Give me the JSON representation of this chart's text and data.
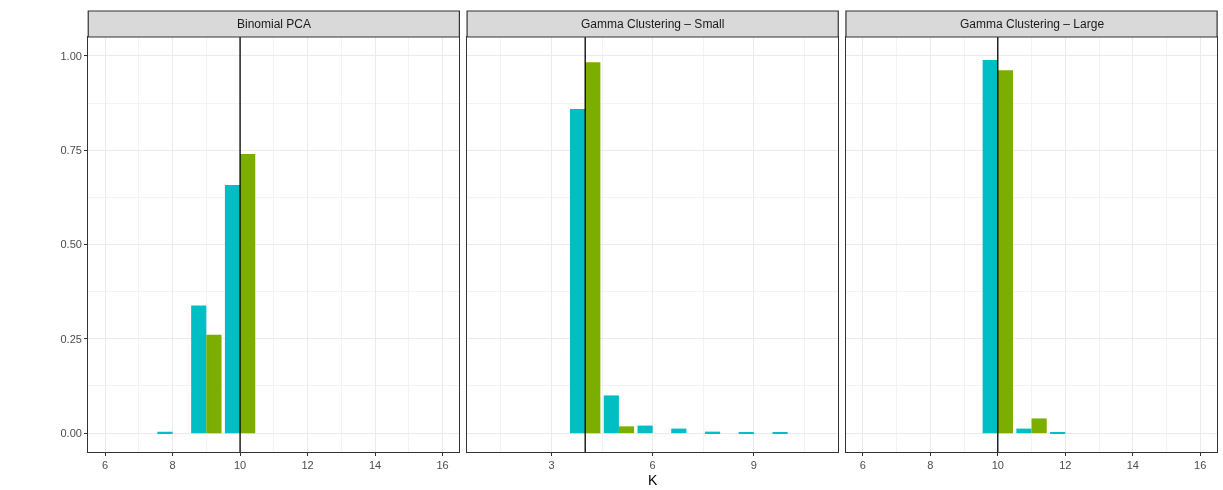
{
  "chart_data": [
    {
      "type": "bar",
      "title": "Binomial PCA",
      "x": [
        8,
        9,
        10
      ],
      "series": [
        {
          "color": "#00bfc4",
          "values": [
            0.004,
            0.338,
            0.658
          ]
        },
        {
          "color": "#7cae00",
          "values": [
            null,
            0.261,
            0.74
          ]
        }
      ],
      "xlim": [
        5.5,
        16.5
      ],
      "xticks": [
        6,
        8,
        10,
        12,
        14,
        16
      ],
      "ylim": [
        -0.05,
        1.05
      ],
      "yticks": [
        {
          "value": 0,
          "label": "0.00"
        },
        {
          "value": 0.25,
          "label": "0.25"
        },
        {
          "value": 0.5,
          "label": "0.50"
        },
        {
          "value": 0.75,
          "label": "0.75"
        },
        {
          "value": 1,
          "label": "1.00"
        }
      ],
      "ref_lines": [
        {
          "axis": "x",
          "value": 10,
          "color": "#000000"
        }
      ],
      "grid": true
    },
    {
      "type": "bar",
      "title": "Gamma Clustering – Small",
      "xlabel": "K",
      "x": [
        4,
        5,
        6,
        7,
        8,
        9,
        10
      ],
      "series": [
        {
          "color": "#00bfc4",
          "values": [
            0.859,
            0.1,
            0.02,
            0.012,
            0.004,
            0.002,
            0.002
          ]
        },
        {
          "color": "#7cae00",
          "values": [
            0.983,
            0.018,
            null,
            null,
            null,
            null,
            null
          ]
        }
      ],
      "xlim": [
        0.5,
        11.5
      ],
      "xticks": [
        3,
        6,
        9
      ],
      "ylim": [
        -0.05,
        1.05
      ],
      "yticks": [
        {
          "value": 0,
          "label": null
        },
        {
          "value": 0.25,
          "label": null
        },
        {
          "value": 0.5,
          "label": null
        },
        {
          "value": 0.75,
          "label": null
        },
        {
          "value": 1,
          "label": null
        }
      ],
      "ref_lines": [
        {
          "axis": "x",
          "value": 4,
          "color": "#000000"
        }
      ],
      "grid": true,
      "tick_labels": "x"
    },
    {
      "type": "bar",
      "title": "Gamma Clustering – Large",
      "x": [
        10,
        11,
        12
      ],
      "series": [
        {
          "color": "#00bfc4",
          "values": [
            0.989,
            0.012,
            0.001
          ]
        },
        {
          "color": "#7cae00",
          "values": [
            0.962,
            0.039,
            null
          ]
        }
      ],
      "xlim": [
        5.5,
        16.5
      ],
      "xticks": [
        6,
        8,
        10,
        12,
        14,
        16
      ],
      "ylim": [
        -0.05,
        1.05
      ],
      "yticks": [
        {
          "value": 0,
          "label": null
        },
        {
          "value": 0.25,
          "label": null
        },
        {
          "value": 0.5,
          "label": null
        },
        {
          "value": 0.75,
          "label": null
        },
        {
          "value": 1,
          "label": null
        }
      ],
      "ref_lines": [
        {
          "axis": "x",
          "value": 10,
          "color": "#000000"
        }
      ],
      "grid": true,
      "tick_labels": "x"
    }
  ]
}
